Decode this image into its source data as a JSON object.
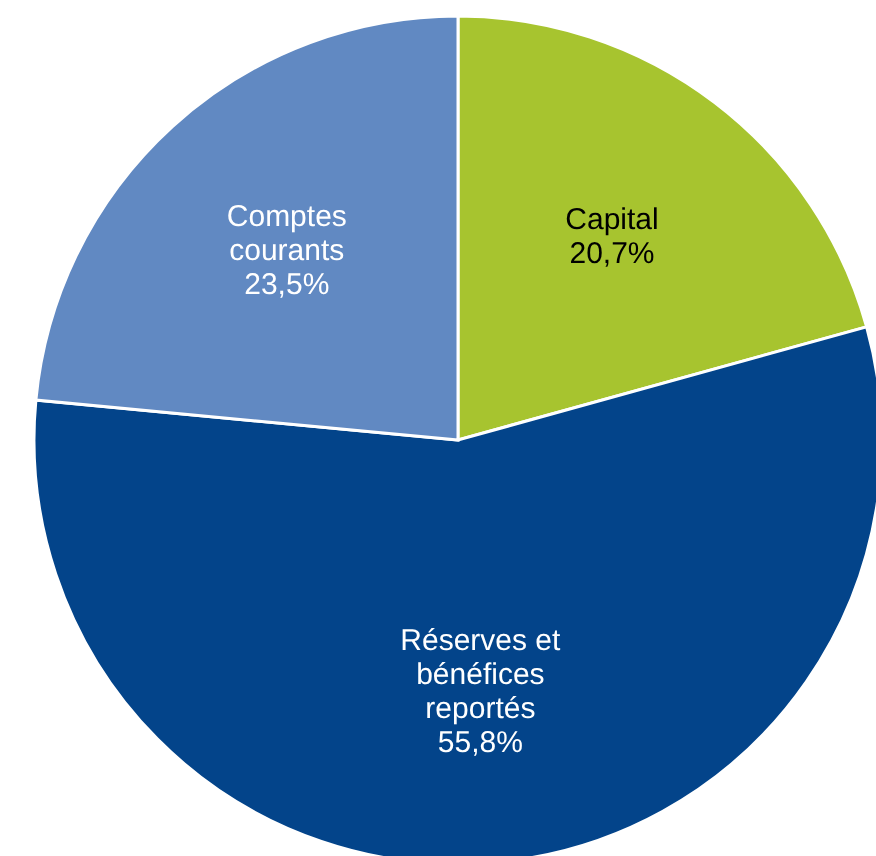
{
  "chart_data": {
    "type": "pie",
    "categories": [
      "Capital",
      "Réserves et bénéfices reportés",
      "Comptes courants"
    ],
    "values": [
      20.7,
      55.8,
      23.5
    ],
    "colors": [
      "#a7c42f",
      "#03448a",
      "#6189c2"
    ],
    "value_labels": [
      "20,7%",
      "55,8%",
      "23,5%"
    ]
  }
}
